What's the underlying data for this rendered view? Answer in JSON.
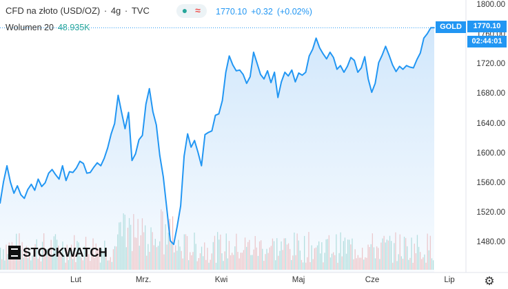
{
  "header": {
    "symbol": "CFD na złoto (USD/OZ)",
    "interval": "4g",
    "source": "TVC",
    "last": "1770.10",
    "change": "+0.32",
    "change_pct": "(+0.02%)"
  },
  "indicator": {
    "name": "Wolumen 20",
    "value": "48.935K"
  },
  "price_tags": {
    "symbol": "GOLD",
    "price": "1770.10",
    "countdown": "02:44:01"
  },
  "logo": "STOCKWATCH",
  "icons": {
    "settings": "gear-icon",
    "indicator_dot": "dot-icon",
    "indicator_wave": "wave-icon"
  },
  "colors": {
    "line": "#2196f3",
    "area_top": "#cfe6fb",
    "vol_up": "#8fd0c8",
    "vol_down": "#f0a7a6",
    "accent_green": "#26a69a",
    "accent_red": "#ef5350"
  },
  "chart_data": {
    "type": "area",
    "ylim": [
      1440,
      1810
    ],
    "yticks": [
      "1800.00",
      "1760.00",
      "1720.00",
      "1680.00",
      "1640.00",
      "1600.00",
      "1560.00",
      "1520.00",
      "1480.00"
    ],
    "xticks": [
      "Lut",
      "Mrz.",
      "Kwi",
      "Maj",
      "Cze",
      "Lip"
    ],
    "x": [
      0,
      1,
      2,
      3,
      4,
      5,
      6,
      7,
      8,
      9,
      10,
      11,
      12,
      13,
      14,
      15,
      16,
      17,
      18,
      19,
      20,
      21,
      22,
      23,
      24,
      25,
      26,
      27,
      28,
      29,
      30,
      31,
      32,
      33,
      34,
      35,
      36,
      37,
      38,
      39,
      40,
      41,
      42,
      43,
      44,
      45,
      46,
      47,
      48,
      49,
      50,
      51,
      52,
      53,
      54,
      55,
      56,
      57,
      58,
      59,
      60,
      61,
      62,
      63,
      64,
      65,
      66,
      67,
      68,
      69,
      70,
      71,
      72,
      73,
      74,
      75,
      76,
      77,
      78,
      79,
      80,
      81,
      82,
      83,
      84,
      85,
      86,
      87,
      88,
      89,
      90,
      91,
      92,
      93,
      94,
      95,
      96,
      97,
      98,
      99,
      100,
      101,
      102,
      103,
      104,
      105,
      106,
      107,
      108,
      109,
      110,
      111,
      112,
      113,
      114,
      115,
      116,
      117,
      118,
      119,
      120,
      121,
      122,
      123,
      124,
      125
    ],
    "values": [
      1533,
      1562,
      1584,
      1562,
      1547,
      1557,
      1545,
      1540,
      1552,
      1559,
      1551,
      1566,
      1556,
      1561,
      1574,
      1579,
      1572,
      1566,
      1584,
      1564,
      1576,
      1575,
      1581,
      1590,
      1587,
      1574,
      1575,
      1582,
      1588,
      1584,
      1594,
      1608,
      1627,
      1641,
      1679,
      1656,
      1634,
      1656,
      1591,
      1600,
      1619,
      1625,
      1667,
      1688,
      1657,
      1639,
      1598,
      1569,
      1527,
      1483,
      1478,
      1502,
      1530,
      1597,
      1627,
      1609,
      1618,
      1602,
      1584,
      1626,
      1629,
      1631,
      1652,
      1654,
      1672,
      1710,
      1732,
      1720,
      1712,
      1713,
      1707,
      1695,
      1704,
      1737,
      1722,
      1707,
      1701,
      1712,
      1696,
      1710,
      1676,
      1697,
      1710,
      1705,
      1713,
      1697,
      1709,
      1706,
      1710,
      1732,
      1741,
      1756,
      1743,
      1735,
      1728,
      1737,
      1730,
      1714,
      1719,
      1710,
      1718,
      1730,
      1726,
      1710,
      1716,
      1731,
      1701,
      1683,
      1695,
      1723,
      1733,
      1745,
      1733,
      1720,
      1711,
      1718,
      1714,
      1719,
      1717,
      1716,
      1727,
      1736,
      1756,
      1762,
      1770,
      1770
    ],
    "volume_unit": "K"
  }
}
